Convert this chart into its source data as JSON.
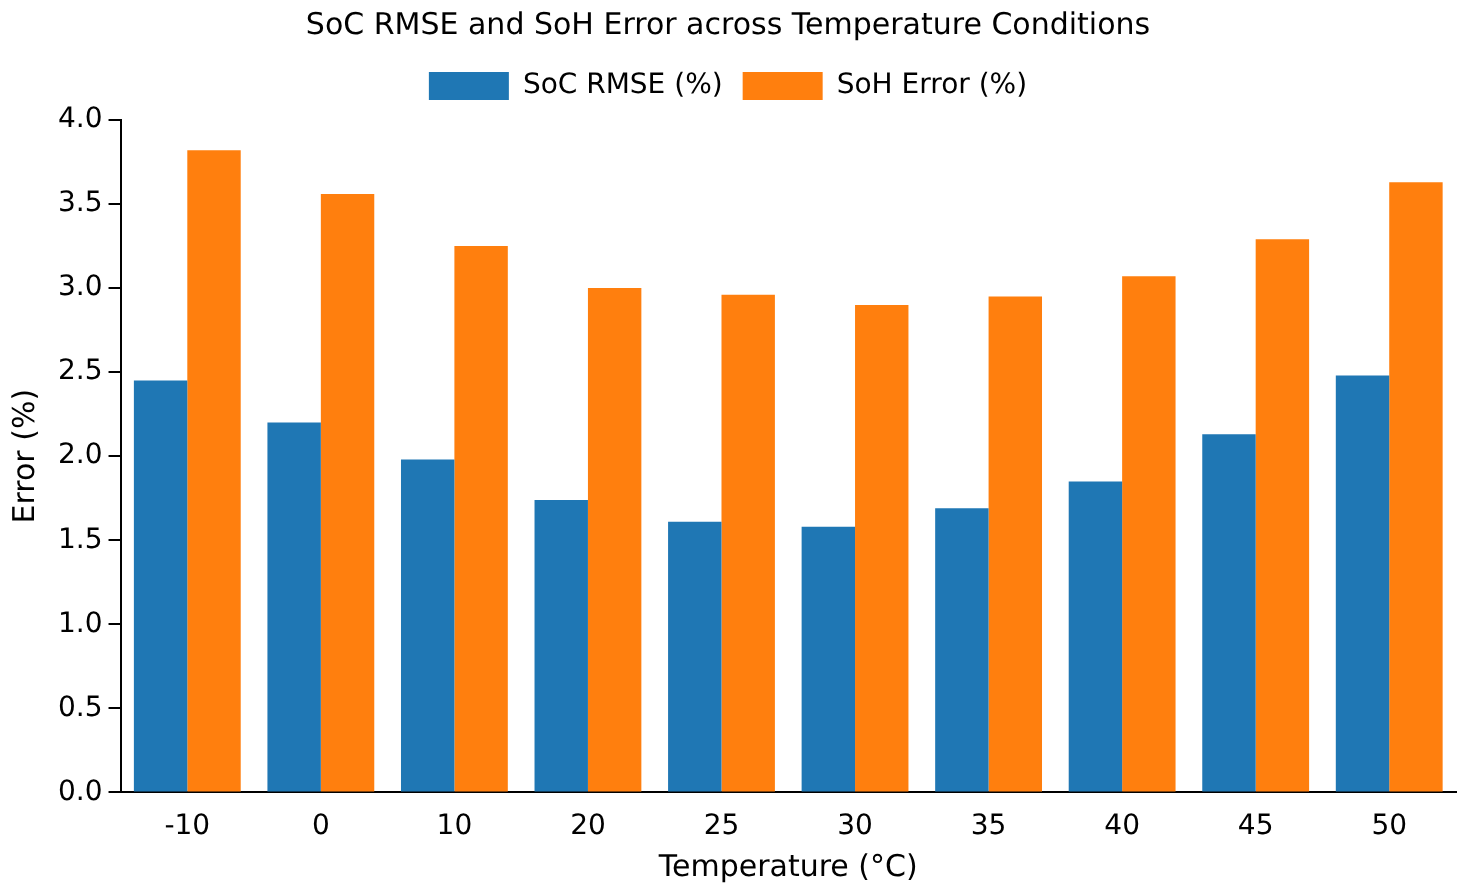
{
  "chart_data": {
    "type": "bar",
    "title": "SoC RMSE and SoH Error across Temperature Conditions",
    "xlabel": "Temperature (°C)",
    "ylabel": "Error (%)",
    "categories": [
      "-10",
      "0",
      "10",
      "20",
      "25",
      "30",
      "35",
      "40",
      "45",
      "50"
    ],
    "series": [
      {
        "name": "SoC RMSE (%)",
        "color": "#1f77b4",
        "values": [
          2.45,
          2.2,
          1.98,
          1.74,
          1.61,
          1.58,
          1.69,
          1.85,
          2.13,
          2.48
        ]
      },
      {
        "name": "SoH Error (%)",
        "color": "#ff7f0e",
        "values": [
          3.82,
          3.56,
          3.25,
          3.0,
          2.96,
          2.9,
          2.95,
          3.07,
          3.29,
          3.63
        ]
      }
    ],
    "ylim": [
      0,
      4.0
    ],
    "yticks": [
      {
        "value": 0,
        "label": "0.0"
      },
      {
        "value": 0.5,
        "label": "0.5"
      },
      {
        "value": 1,
        "label": "1.0"
      },
      {
        "value": 1.5,
        "label": "1.5"
      },
      {
        "value": 2,
        "label": "2.0"
      },
      {
        "value": 2.5,
        "label": "2.5"
      },
      {
        "value": 3,
        "label": "3.0"
      },
      {
        "value": 3.5,
        "label": "3.5"
      },
      {
        "value": 4,
        "label": "4.0"
      }
    ],
    "grid": false,
    "legend": "top"
  }
}
